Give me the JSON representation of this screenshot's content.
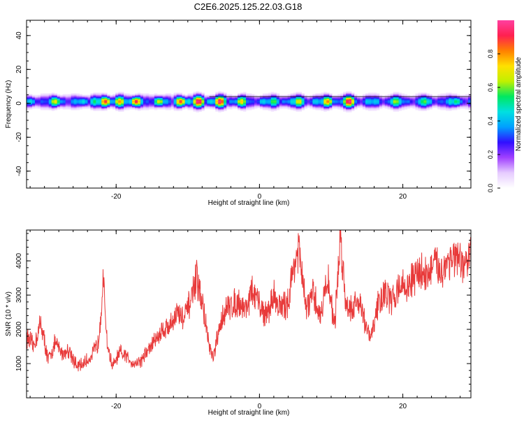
{
  "page_title": "C2E6.2025.125.22.03.G18",
  "colors": {
    "snr_line": "#e83a3a",
    "axis": "#000000",
    "spectrum_background": "#ffffff",
    "colorscale": [
      "#ffffff",
      "#e6ccff",
      "#a040ff",
      "#3010ff",
      "#00a0ff",
      "#00e0e0",
      "#00e860",
      "#c0f000",
      "#ffe000",
      "#ff8000",
      "#ff2050",
      "#ff40a0"
    ]
  },
  "chart_data": [
    {
      "type": "heatmap",
      "title": "C2E6.2025.125.22.03.G18",
      "xlabel": "Height of straight line (km)",
      "ylabel": "Frequency (Hz)",
      "xlim": [
        -32.5,
        29.5
      ],
      "ylim": [
        -50,
        49
      ],
      "xticks": [
        -20,
        0,
        20
      ],
      "yticks": [
        -40,
        -20,
        0,
        20,
        40
      ],
      "grid": false,
      "colorbar": {
        "label": "Normalized spectral amplitude",
        "range": [
          0.0,
          1.0
        ],
        "ticks": [
          "0.0",
          "0.2",
          "0.4",
          "0.6",
          "0.8"
        ]
      },
      "band_center_hz": 1.0,
      "band_halfwidth_hz": 3.0,
      "peaks": [
        {
          "x": -28.5,
          "amp": 0.72
        },
        {
          "x": -23.0,
          "amp": 0.55
        },
        {
          "x": -21.5,
          "amp": 0.9
        },
        {
          "x": -19.5,
          "amp": 0.8
        },
        {
          "x": -17.2,
          "amp": 0.92
        },
        {
          "x": -14.0,
          "amp": 0.7
        },
        {
          "x": -11.0,
          "amp": 0.88
        },
        {
          "x": -8.5,
          "amp": 1.0
        },
        {
          "x": -5.5,
          "amp": 0.98
        },
        {
          "x": -2.5,
          "amp": 0.75
        },
        {
          "x": 2.0,
          "amp": 0.6
        },
        {
          "x": 5.5,
          "amp": 0.72
        },
        {
          "x": 9.5,
          "amp": 0.82
        },
        {
          "x": 12.5,
          "amp": 1.0
        },
        {
          "x": 19.0,
          "amp": 0.65
        },
        {
          "x": 23.0,
          "amp": 0.6
        },
        {
          "x": 27.5,
          "amp": 0.55
        }
      ]
    },
    {
      "type": "line",
      "xlabel": "Height of straight line (km)",
      "ylabel": "SNR (10 * v/v)",
      "xlim": [
        -32.5,
        29.5
      ],
      "ylim": [
        0,
        4900
      ],
      "xticks": [
        -20,
        0,
        20
      ],
      "yticks": [
        1000,
        2000,
        3000,
        4000
      ],
      "grid": false,
      "series": [
        {
          "x": [
            -32.5,
            -31.5,
            -30.5,
            -29.5,
            -28.5,
            -27.5,
            -26.5,
            -25.5,
            -24.5,
            -23.5,
            -22.5,
            -21.8,
            -21.2,
            -20.5,
            -19.5,
            -18.5,
            -17.5,
            -16.5,
            -15.5,
            -14.5,
            -13.5,
            -12.5,
            -11.5,
            -10.5,
            -9.5,
            -8.8,
            -8.0,
            -7.0,
            -6.5,
            -6.0,
            -5.0,
            -4.0,
            -3.0,
            -2.0,
            -1.0,
            0.0,
            1.0,
            2.0,
            3.0,
            4.0,
            4.8,
            5.5,
            6.5,
            7.5,
            8.5,
            9.5,
            10.5,
            11.3,
            12.0,
            13.0,
            14.0,
            14.8,
            15.5,
            16.5,
            17.5,
            18.5,
            19.5,
            20.5,
            21.5,
            22.5,
            23.5,
            24.5,
            25.5,
            26.5,
            27.5,
            28.5,
            29.5
          ],
          "values": [
            1800,
            1500,
            2200,
            1100,
            1600,
            1300,
            1400,
            900,
            1000,
            1200,
            1600,
            3400,
            1500,
            900,
            1300,
            1200,
            1000,
            1100,
            1400,
            1700,
            2000,
            2100,
            2500,
            2300,
            2900,
            3500,
            2800,
            1500,
            1100,
            1600,
            2500,
            2700,
            2800,
            2600,
            3100,
            2700,
            2400,
            3000,
            2600,
            2800,
            3900,
            4300,
            2600,
            3000,
            2400,
            3500,
            2100,
            4800,
            2800,
            2600,
            2900,
            2100,
            1700,
            2700,
            3100,
            2800,
            3300,
            3200,
            3500,
            3700,
            3600,
            3900,
            3700,
            4100,
            4000,
            3800,
            4200
          ]
        }
      ]
    }
  ]
}
